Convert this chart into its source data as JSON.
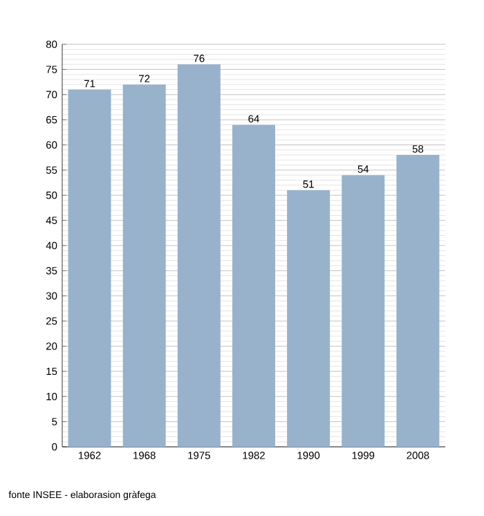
{
  "chart_data": {
    "type": "bar",
    "categories": [
      "1962",
      "1968",
      "1975",
      "1982",
      "1990",
      "1999",
      "2008"
    ],
    "values": [
      71,
      72,
      76,
      64,
      51,
      54,
      58
    ],
    "color": "#98b2cc",
    "ylim": [
      0,
      80
    ],
    "yticks": [
      0,
      5,
      10,
      15,
      20,
      25,
      30,
      35,
      40,
      45,
      50,
      55,
      60,
      65,
      70,
      75,
      80
    ],
    "grid": "y",
    "data_labels": true,
    "annotations": [
      "fonte INSEE - elaborasion gràfega"
    ]
  }
}
